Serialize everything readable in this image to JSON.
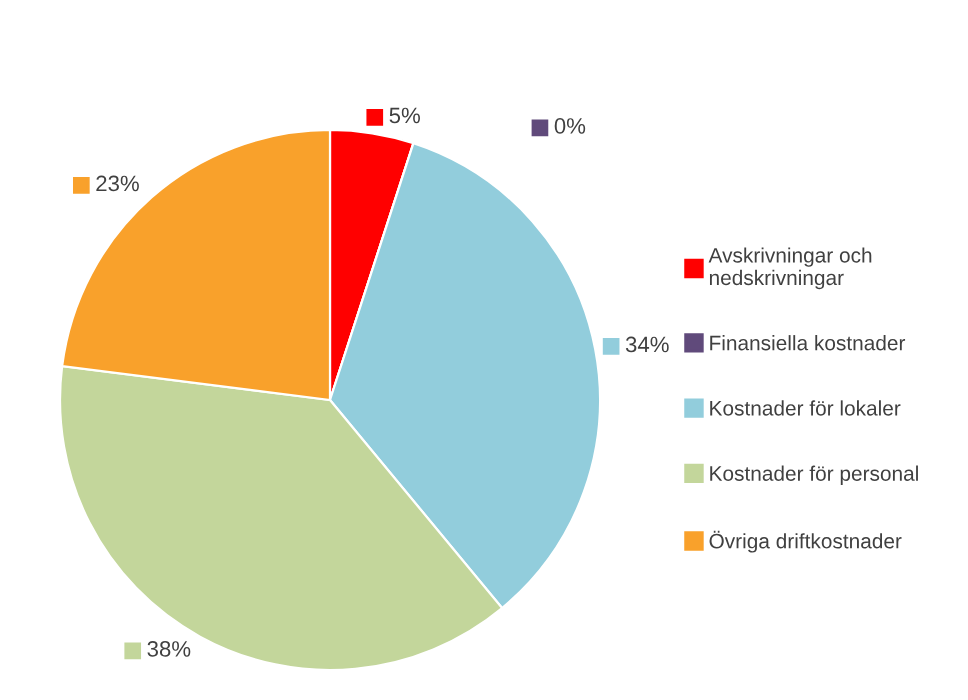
{
  "chart_data": {
    "type": "pie",
    "categories": [
      "Avskrivningar och nedskrivningar",
      "Finansiella kostnader",
      "Kostnader för lokaler",
      "Kostnader för personal",
      "Övriga driftkostnader"
    ],
    "values": [
      5,
      0,
      34,
      38,
      23
    ],
    "value_labels": [
      "5%",
      "0%",
      "34%",
      "38%",
      "23%"
    ],
    "colors": [
      "#ff0000",
      "#604a7b",
      "#92cddc",
      "#c3d69b",
      "#f9a12b"
    ],
    "legend": "right"
  }
}
